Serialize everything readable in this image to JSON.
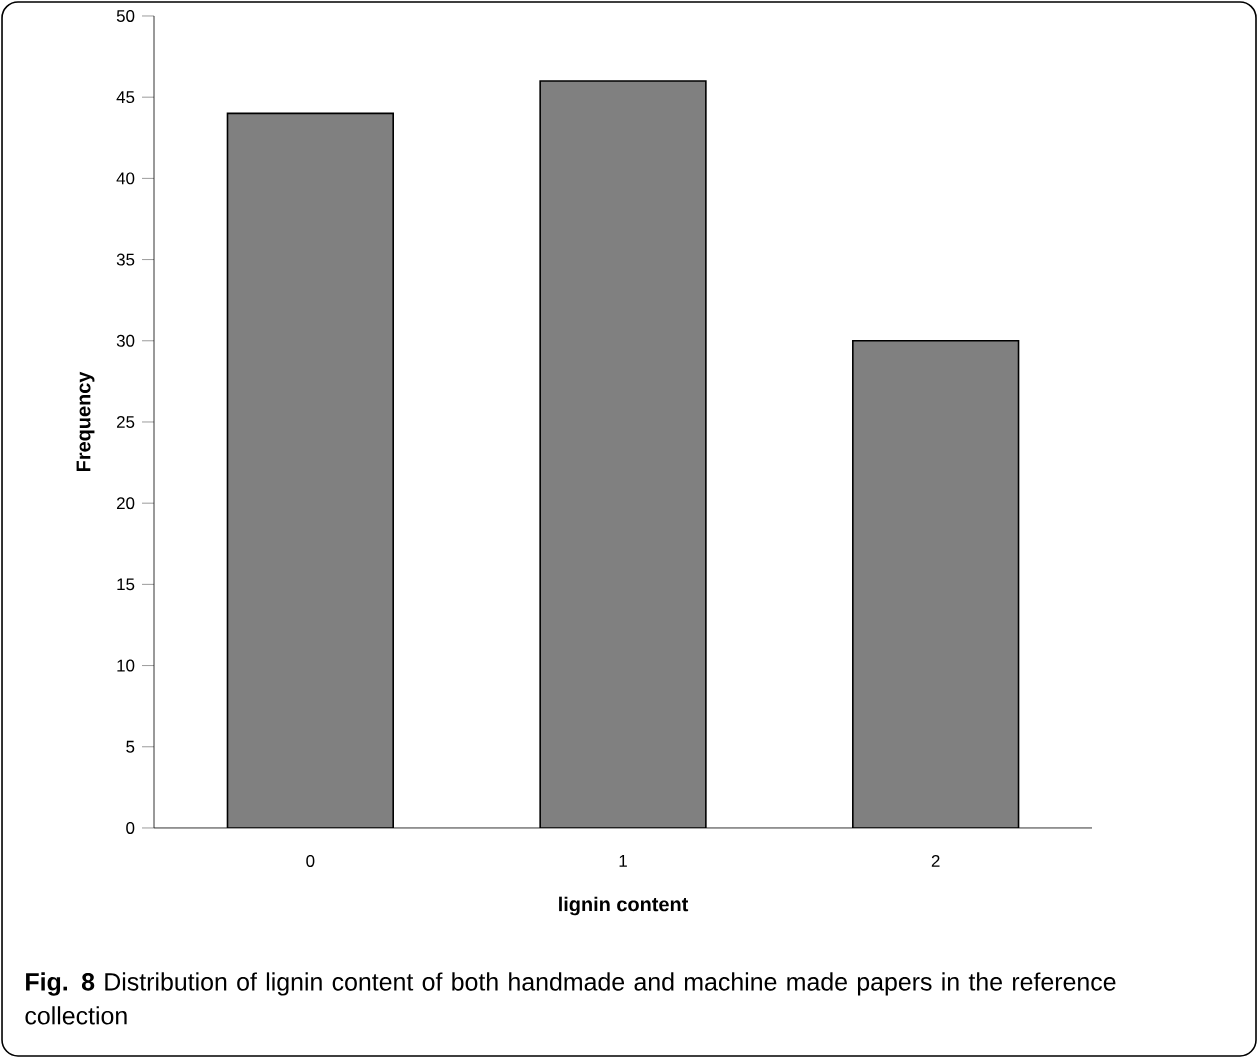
{
  "chart_data": {
    "type": "bar",
    "xlabel": "lignin content",
    "ylabel": "Frequency",
    "categories": [
      "0",
      "1",
      "2"
    ],
    "values": [
      44,
      46,
      30
    ],
    "color": "#808080",
    "ylim": [
      0,
      50
    ],
    "yticks": [
      0,
      5,
      10,
      15,
      20,
      25,
      30,
      35,
      40,
      45,
      50
    ],
    "annotations": [
      "**Fig. 8** Distribution of lignin content of both handmade and machine made papers in the reference collection"
    ]
  }
}
